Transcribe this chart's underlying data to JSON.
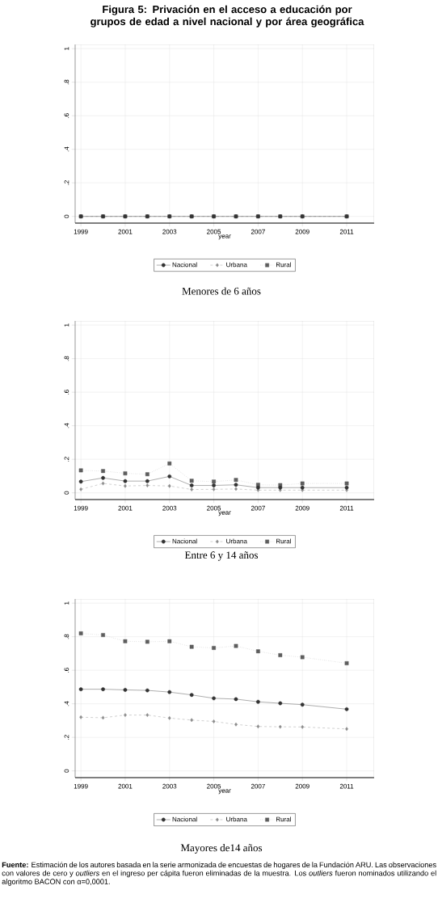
{
  "chart_data": [
    {
      "type": "line",
      "title": "Figura  5: Privación en el acceso a educación por grupos de edad a nivel nacional y por área geográfica",
      "xlabel": "year",
      "x": [
        1999,
        2000,
        2001,
        2002,
        2003,
        2004,
        2005,
        2006,
        2007,
        2008,
        2009,
        2011
      ],
      "xlim": [
        1998.74,
        2012.24
      ],
      "ylim": [
        -0.04,
        1.025
      ],
      "xticks": [
        1999,
        2001,
        2003,
        2005,
        2007,
        2009,
        2011
      ],
      "yticks": [
        0,
        {
          "value": 0.2,
          "label": ".2"
        },
        {
          "value": 0.4,
          "label": ".4"
        },
        {
          "value": 0.6,
          "label": ".6"
        },
        {
          "value": 0.8,
          "label": ".8"
        },
        1
      ],
      "grid": true,
      "legend": "bottom",
      "annotations": [
        "Menores de 6 años"
      ],
      "series": [
        {
          "name": "Nacional",
          "color": "#333333",
          "marker": "circle",
          "line_style": "solid",
          "values": [
            0,
            0,
            0,
            0,
            0,
            0,
            0,
            0,
            0,
            0,
            0,
            0
          ]
        },
        {
          "name": "Urbana",
          "color": "#8c8c8c",
          "marker": "diamond",
          "line_style": "dashed",
          "values": [
            0,
            0,
            0,
            0,
            0,
            0,
            0,
            0,
            0,
            0,
            0,
            0
          ]
        },
        {
          "name": "Rural",
          "color": "#5e5e5e",
          "marker": "square",
          "line_style": "dotted",
          "values": [
            0,
            0,
            0,
            0,
            0,
            0,
            0,
            0,
            0,
            0,
            0,
            0
          ]
        }
      ]
    },
    {
      "type": "line",
      "xlabel": "year",
      "x": [
        1999,
        2000,
        2001,
        2002,
        2003,
        2004,
        2005,
        2006,
        2007,
        2008,
        2009,
        2011
      ],
      "xlim": [
        1998.74,
        2012.24
      ],
      "ylim": [
        -0.04,
        1.025
      ],
      "xticks": [
        1999,
        2001,
        2003,
        2005,
        2007,
        2009,
        2011
      ],
      "yticks": [
        0,
        {
          "value": 0.2,
          "label": ".2"
        },
        {
          "value": 0.4,
          "label": ".4"
        },
        {
          "value": 0.6,
          "label": ".6"
        },
        {
          "value": 0.8,
          "label": ".8"
        },
        1
      ],
      "grid": true,
      "legend": "bottom",
      "annotations": [
        "Entre 6 y 14 años"
      ],
      "series": [
        {
          "name": "Nacional",
          "color": "#333333",
          "marker": "circle",
          "line_style": "solid",
          "values": [
            0.067,
            0.089,
            0.07,
            0.07,
            0.098,
            0.044,
            0.044,
            0.048,
            0.031,
            0.031,
            0.031,
            0.031
          ]
        },
        {
          "name": "Urbana",
          "color": "#8c8c8c",
          "marker": "diamond",
          "line_style": "dashed",
          "values": [
            0.021,
            0.056,
            0.041,
            0.044,
            0.041,
            0.02,
            0.021,
            0.023,
            0.016,
            0.016,
            0.016,
            0.016
          ]
        },
        {
          "name": "Rural",
          "color": "#5e5e5e",
          "marker": "square",
          "line_style": "dotted",
          "values": [
            0.134,
            0.13,
            0.116,
            0.111,
            0.175,
            0.072,
            0.067,
            0.077,
            0.048,
            0.046,
            0.056,
            0.056
          ]
        }
      ]
    },
    {
      "type": "line",
      "xlabel": "year",
      "x": [
        1999,
        2000,
        2001,
        2002,
        2003,
        2004,
        2005,
        2006,
        2007,
        2008,
        2009,
        2011
      ],
      "xlim": [
        1998.74,
        2012.24
      ],
      "ylim": [
        -0.04,
        1.025
      ],
      "xticks": [
        1999,
        2001,
        2003,
        2005,
        2007,
        2009,
        2011
      ],
      "yticks": [
        0,
        {
          "value": 0.2,
          "label": ".2"
        },
        {
          "value": 0.4,
          "label": ".4"
        },
        {
          "value": 0.6,
          "label": ".6"
        },
        {
          "value": 0.8,
          "label": ".8"
        },
        1
      ],
      "grid": true,
      "legend": "bottom",
      "annotations": [
        "Mayores de14 años",
        "**Fuente:** Estimación de los autores basada en la serie armonizada de encuestas de hogares de la Fundación ARU. Las observaciones con valores de cero y *outliers* en el ingreso per cápita fueron eliminadas de la muestra. Los *outliers* fueron nominados utilizando  el algoritmo BACON con α=0,0001."
      ],
      "series": [
        {
          "name": "Nacional",
          "color": "#333333",
          "marker": "circle",
          "line_style": "solid",
          "values": [
            0.487,
            0.487,
            0.483,
            0.48,
            0.47,
            0.453,
            0.433,
            0.428,
            0.412,
            0.403,
            0.395,
            0.368
          ]
        },
        {
          "name": "Urbana",
          "color": "#8c8c8c",
          "marker": "diamond",
          "line_style": "dashed",
          "values": [
            0.32,
            0.317,
            0.333,
            0.333,
            0.315,
            0.303,
            0.295,
            0.277,
            0.265,
            0.263,
            0.262,
            0.25
          ]
        },
        {
          "name": "Rural",
          "color": "#5e5e5e",
          "marker": "square",
          "line_style": "dotted",
          "values": [
            0.82,
            0.81,
            0.773,
            0.77,
            0.773,
            0.74,
            0.733,
            0.745,
            0.713,
            0.69,
            0.678,
            0.642
          ]
        }
      ]
    }
  ]
}
